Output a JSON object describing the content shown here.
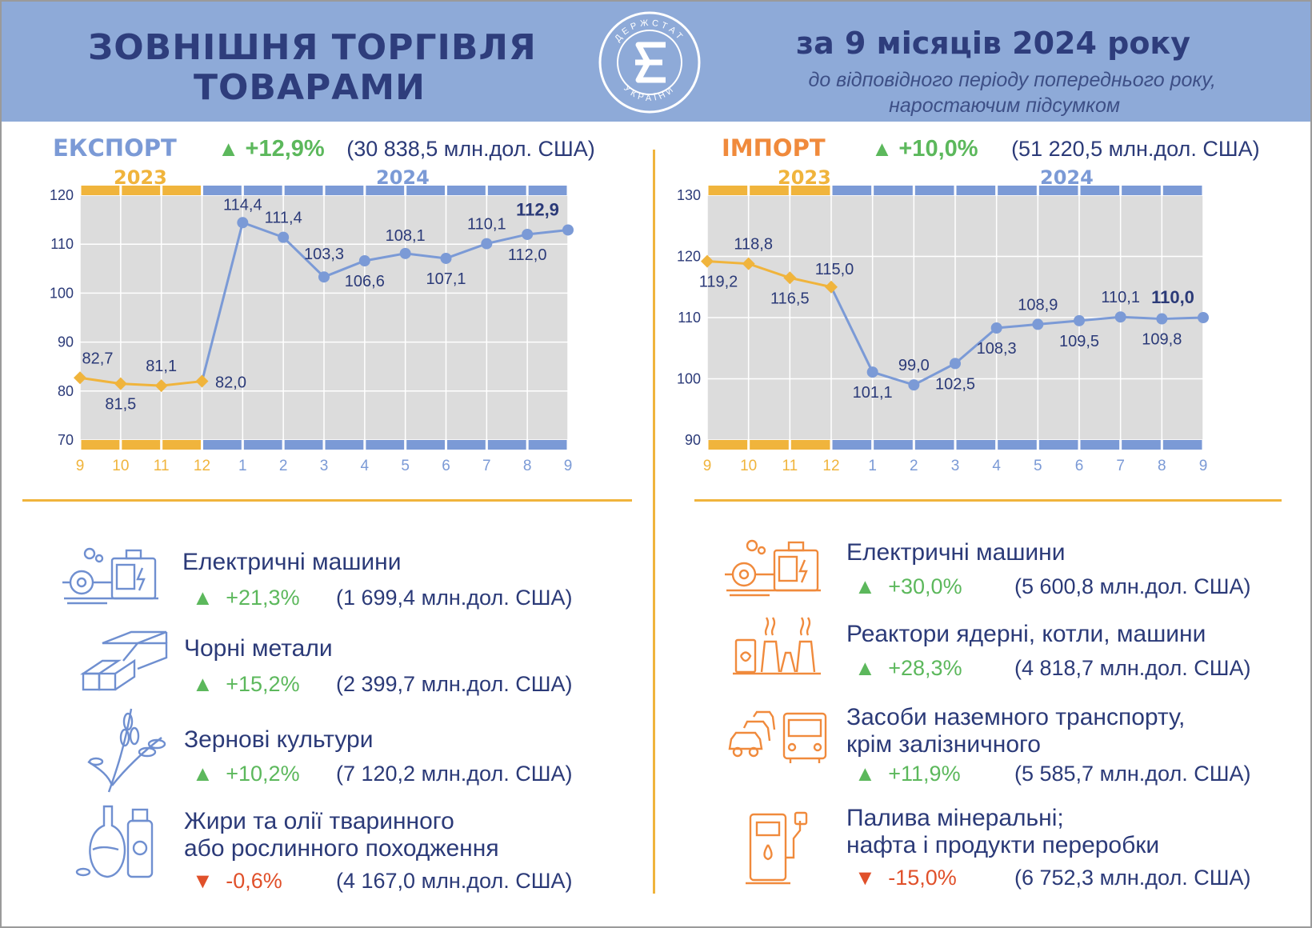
{
  "header": {
    "title_line1": "ЗОВНІШНЯ ТОРГІВЛЯ",
    "title_line2": "ТОВАРАМИ",
    "period": "за 9 місяців 2024 року",
    "subtitle_line1": "до відповідного періоду попереднього року,",
    "subtitle_line2": "наростаючим підсумком",
    "logo_text_top": "ДЕРЖСТАТ",
    "logo_text_bottom": "УКРАЇНИ"
  },
  "colors": {
    "header_bg": "#8eaad8",
    "navy": "#2e3d7c",
    "year_2023": "#f0b43c",
    "year_2024": "#7b9ad6",
    "export_line": "#7b9ad6",
    "line_2023": "#f0b43c",
    "grid_bg": "#dcdcdc",
    "increase": "#5cb85c",
    "decrease": "#e0502a",
    "export_icon": "#6f8fd0",
    "import_icon": "#f08a3c"
  },
  "export": {
    "label": "ЕКСПОРТ",
    "change": "+12,9%",
    "amount": "(30 838,5 млн.дол. США)",
    "year_a": "2023",
    "year_b": "2024"
  },
  "import": {
    "label": "ІМПОРТ",
    "change": "+10,0%",
    "amount": "(51 220,5 млн.дол. США)",
    "year_a": "2023",
    "year_b": "2024"
  },
  "chart_data": [
    {
      "type": "line",
      "x": [
        "9",
        "10",
        "11",
        "12",
        "1",
        "2",
        "3",
        "4",
        "5",
        "6",
        "7",
        "8",
        "9"
      ],
      "series": [
        {
          "values": [
            82.7,
            81.5,
            81.1,
            82.0,
            null,
            null,
            null,
            null,
            null,
            null,
            null,
            null,
            null
          ]
        },
        {
          "values": [
            null,
            null,
            null,
            82.0,
            114.4,
            111.4,
            103.3,
            106.6,
            108.1,
            107.1,
            110.1,
            112.0,
            112.9
          ]
        }
      ],
      "data_labels": [
        "82,7",
        "81,5",
        "81,1",
        "82,0",
        "114,4",
        "111,4",
        "103,3",
        "106,6",
        "108,1",
        "107,1",
        "110,1",
        "112,0",
        "112,9"
      ],
      "yticks": [
        "70",
        "80",
        "90",
        "100",
        "110",
        "120"
      ],
      "ylim": [
        70,
        120
      ],
      "grid": true
    },
    {
      "type": "line",
      "x": [
        "9",
        "10",
        "11",
        "12",
        "1",
        "2",
        "3",
        "4",
        "5",
        "6",
        "7",
        "8",
        "9"
      ],
      "series": [
        {
          "values": [
            119.2,
            118.8,
            116.5,
            115.0,
            null,
            null,
            null,
            null,
            null,
            null,
            null,
            null,
            null
          ]
        },
        {
          "values": [
            null,
            null,
            null,
            115.0,
            101.1,
            99.0,
            102.5,
            108.3,
            108.9,
            109.5,
            110.1,
            109.8,
            110.0
          ]
        }
      ],
      "data_labels": [
        "119,2",
        "118,8",
        "116,5",
        "115,0",
        "101,1",
        "99,0",
        "102,5",
        "108,3",
        "108,9",
        "109,5",
        "110,1",
        "109,8",
        "110,0"
      ],
      "yticks": [
        "90",
        "100",
        "110",
        "120",
        "130"
      ],
      "ylim": [
        90,
        130
      ],
      "grid": true
    }
  ],
  "export_categories": [
    {
      "icon": "electric-machine-icon",
      "title": "Електричні машини",
      "change": "+21,3%",
      "direction": "up",
      "amount": "(1 699,4 млн.дол. США)"
    },
    {
      "icon": "metal-beams-icon",
      "title": "Чорні метали",
      "change": "+15,2%",
      "direction": "up",
      "amount": "(2 399,7 млн.дол. США)"
    },
    {
      "icon": "wheat-icon",
      "title": "Зернові культури",
      "change": "+10,2%",
      "direction": "up",
      "amount": "(7 120,2 млн.дол. США)"
    },
    {
      "icon": "oil-bottles-icon",
      "title_line1": "Жири та олії тваринного",
      "title_line2": "або рослинного походження",
      "change": "-0,6%",
      "direction": "down",
      "amount": "(4 167,0 млн.дол. США)"
    }
  ],
  "import_categories": [
    {
      "icon": "electric-machine-icon",
      "title": "Електричні машини",
      "change": "+30,0%",
      "direction": "up",
      "amount": "(5 600,8 млн.дол. США)"
    },
    {
      "icon": "power-plant-icon",
      "title": "Реактори ядерні, котли, машини",
      "change": "+28,3%",
      "direction": "up",
      "amount": "(4 818,7 млн.дол. США)"
    },
    {
      "icon": "cars-bus-icon",
      "title_line1": "Засоби наземного транспорту,",
      "title_line2": "крім залізничного",
      "change": "+11,9%",
      "direction": "up",
      "amount": "(5 585,7 млн.дол. США)"
    },
    {
      "icon": "fuel-pump-icon",
      "title_line1": "Палива мінеральні;",
      "title_line2": "нафта і продукти переробки",
      "change": "-15,0%",
      "direction": "down",
      "amount": "(6 752,3 млн.дол. США)"
    }
  ]
}
